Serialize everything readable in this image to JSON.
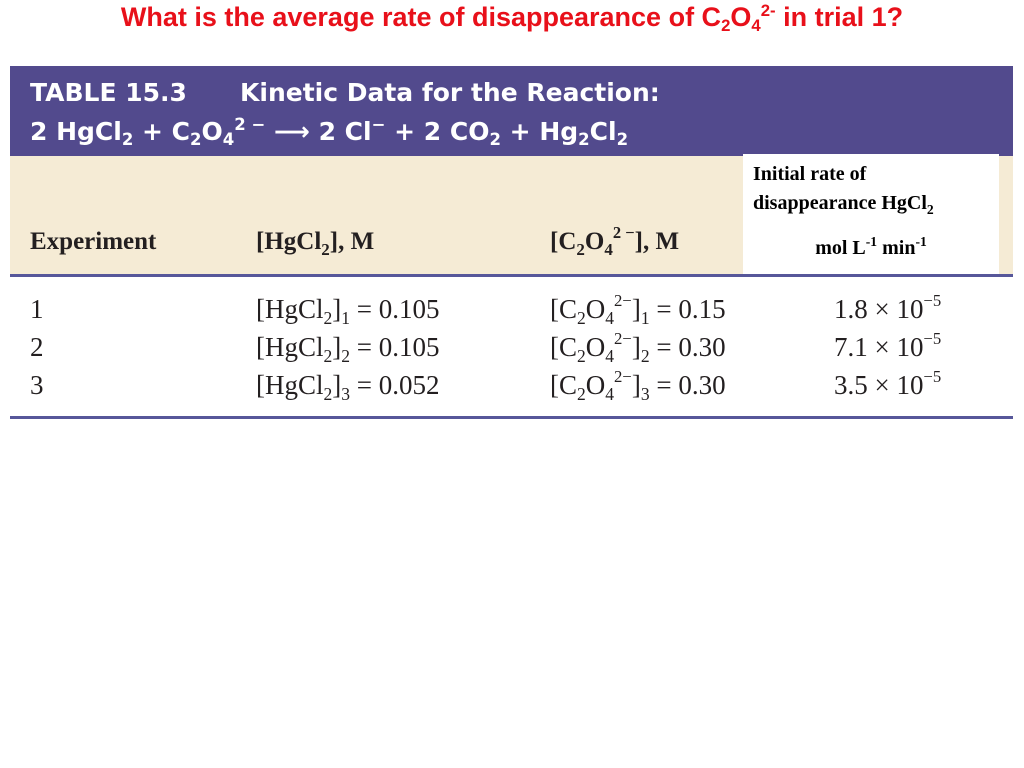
{
  "question": {
    "prefix": "What is the average rate of disappearance of C",
    "sub1": "2",
    "o": "O",
    "sub2": "4",
    "charge": "2-",
    "suffix": " in trial 1?"
  },
  "table": {
    "number": "TABLE 15.3",
    "title": "Kinetic Data for the Reaction:",
    "reaction": {
      "coef1": "2 HgCl",
      "sub_a": "2",
      "plus1": " + C",
      "sub_b": "2",
      "o": "O",
      "sub_c": "4",
      "charge": "2 −",
      "arrow": " ⟶ ",
      "prod1": "2 Cl",
      "prod1_charge": "−",
      "plus2": " + 2 CO",
      "sub_d": "2",
      "plus3": " + Hg",
      "sub_e": "2",
      "cl": "Cl",
      "sub_f": "2"
    },
    "headers": {
      "experiment": "Experiment",
      "hgcl2_a": "[HgCl",
      "hgcl2_sub": "2",
      "hgcl2_b": "], M",
      "c2o4_a": "[C",
      "c2o4_sub1": "2",
      "c2o4_o": "O",
      "c2o4_sub2": "4",
      "c2o4_charge": "2 −",
      "c2o4_b": "], M"
    },
    "rate_header": {
      "line1": "Initial rate of",
      "line2": "disappearance HgCl",
      "line2_sub": "2",
      "units_a": "mol L",
      "units_exp1": "-1",
      "units_b": " min",
      "units_exp2": "-1"
    },
    "rows": [
      {
        "exp": "1",
        "hg_idx": "1",
        "hg_val": " = 0.105",
        "c_idx": "1",
        "c_val": " = 0.15",
        "rate": "1.8 × 10",
        "rate_exp": "−5"
      },
      {
        "exp": "2",
        "hg_idx": "2",
        "hg_val": " = 0.105",
        "c_idx": "2",
        "c_val": " = 0.30",
        "rate": "7.1 × 10",
        "rate_exp": "−5"
      },
      {
        "exp": "3",
        "hg_idx": "3",
        "hg_val": " = 0.052",
        "c_idx": "3",
        "c_val": " = 0.30",
        "rate": "3.5 × 10",
        "rate_exp": "−5"
      }
    ],
    "row_labels": {
      "hg_a": "[HgCl",
      "hg_sub": "2",
      "hg_b": "]",
      "c_a": "[C",
      "c_sub1": "2",
      "c_o": "O",
      "c_sub2": "4",
      "c_charge": "2−",
      "c_b": "]"
    }
  },
  "colors": {
    "question": "#e8101a",
    "title_band": "#524a8d",
    "header_band": "#f5ebd5",
    "rule": "#57579a"
  }
}
